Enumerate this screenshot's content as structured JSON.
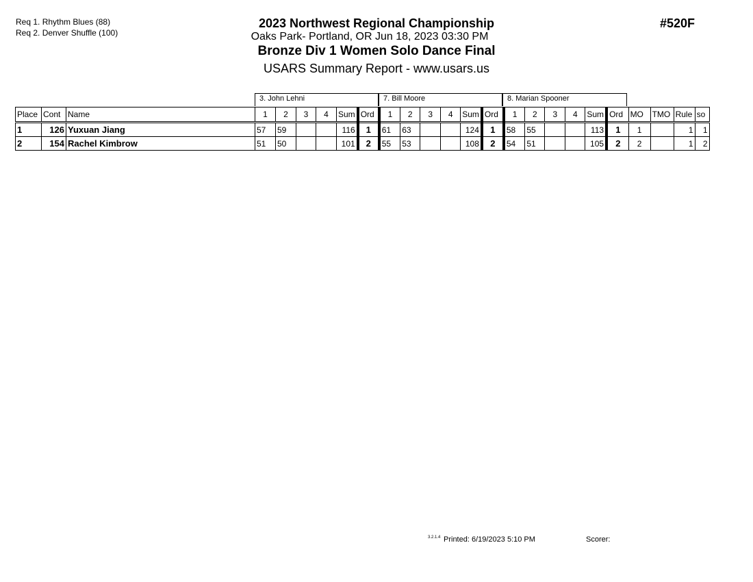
{
  "requirements": [
    "Req  1.  Rhythm Blues (88)",
    "Req  2.  Denver Shuffle (100)"
  ],
  "header": {
    "title": "2023 Northwest Regional Championship",
    "location": "Oaks Park- Portland, OR  Jun 18, 2023  03:30 PM",
    "event": "Bronze Div 1 Women Solo Dance Final",
    "report": "USARS Summary Report - www.usars.us",
    "event_number": "#520F"
  },
  "judges": [
    "3.  John Lehni",
    "7.  Bill Moore",
    "8.  Marian Spooner"
  ],
  "columns": {
    "place": "Place",
    "cont": "Cont",
    "name": "Name",
    "scores": [
      "1",
      "2",
      "3",
      "4"
    ],
    "sum": "Sum",
    "ord": "Ord",
    "mo": "MO",
    "tmo": "TMO",
    "rule": "Rule",
    "so": "so"
  },
  "rows": [
    {
      "place": "1",
      "cont": "126",
      "name": "Yuxuan Jiang",
      "judges": [
        {
          "s": [
            "57",
            "59",
            "",
            ""
          ],
          "sum": "116",
          "ord": "1"
        },
        {
          "s": [
            "61",
            "63",
            "",
            ""
          ],
          "sum": "124",
          "ord": "1"
        },
        {
          "s": [
            "58",
            "55",
            "",
            ""
          ],
          "sum": "113",
          "ord": "1"
        }
      ],
      "mo": "1",
      "tmo": "",
      "rule": "1",
      "so": "1"
    },
    {
      "place": "2",
      "cont": "154",
      "name": "Rachel Kimbrow",
      "judges": [
        {
          "s": [
            "51",
            "50",
            "",
            ""
          ],
          "sum": "101",
          "ord": "2"
        },
        {
          "s": [
            "55",
            "53",
            "",
            ""
          ],
          "sum": "108",
          "ord": "2"
        },
        {
          "s": [
            "54",
            "51",
            "",
            ""
          ],
          "sum": "105",
          "ord": "2"
        }
      ],
      "mo": "2",
      "tmo": "",
      "rule": "1",
      "so": "2"
    }
  ],
  "footer": {
    "version": "3.2.1.4",
    "printed": "Printed:  6/19/2023  5:10 PM",
    "scorer": "Scorer:"
  }
}
